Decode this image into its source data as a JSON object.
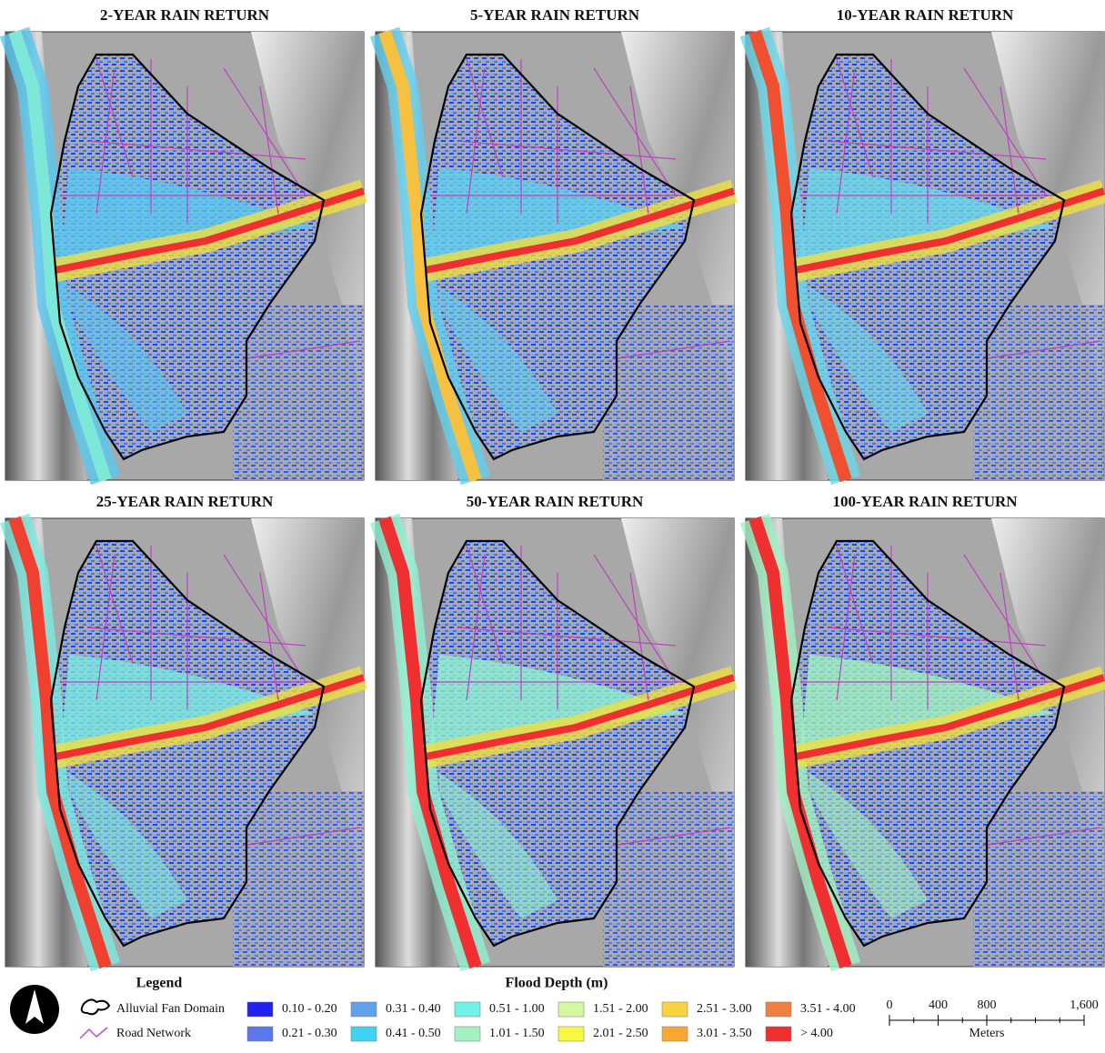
{
  "panels": [
    {
      "title": "2-YEAR RAIN RETURN"
    },
    {
      "title": "5-YEAR RAIN RETURN"
    },
    {
      "title": "10-YEAR RAIN RETURN"
    },
    {
      "title": "25-YEAR RAIN RETURN"
    },
    {
      "title": "50-YEAR RAIN RETURN"
    },
    {
      "title": "100-YEAR RAIN RETURN"
    }
  ],
  "legend": {
    "title": "Legend",
    "items": [
      {
        "label": "Alluvial Fan Domain"
      },
      {
        "label": "Road Network"
      }
    ]
  },
  "flood_depth": {
    "title": "Flood Depth (m)",
    "classes": [
      {
        "label": "0.10 - 0.20",
        "color": "#2222f0"
      },
      {
        "label": "0.21 - 0.30",
        "color": "#5a78ea"
      },
      {
        "label": "0.31 - 0.40",
        "color": "#5ea2ee"
      },
      {
        "label": "0.41 - 0.50",
        "color": "#3fd2f2"
      },
      {
        "label": "0.51 - 1.00",
        "color": "#72f2e6"
      },
      {
        "label": "1.01 - 1.50",
        "color": "#a4f0c0"
      },
      {
        "label": "1.51 - 2.00",
        "color": "#d2f8a0"
      },
      {
        "label": "2.01 - 2.50",
        "color": "#f8f840"
      },
      {
        "label": "2.51 - 3.00",
        "color": "#f8d240"
      },
      {
        "label": "3.01 - 3.50",
        "color": "#f6a832"
      },
      {
        "label": "3.51 - 4.00",
        "color": "#f08040"
      },
      {
        "label": "> 4.00",
        "color": "#f03030"
      }
    ]
  },
  "scale_bar": {
    "unit": "Meters",
    "ticks": [
      0,
      400,
      800,
      {
        "value": 1600,
        "label": "1,600"
      }
    ]
  }
}
